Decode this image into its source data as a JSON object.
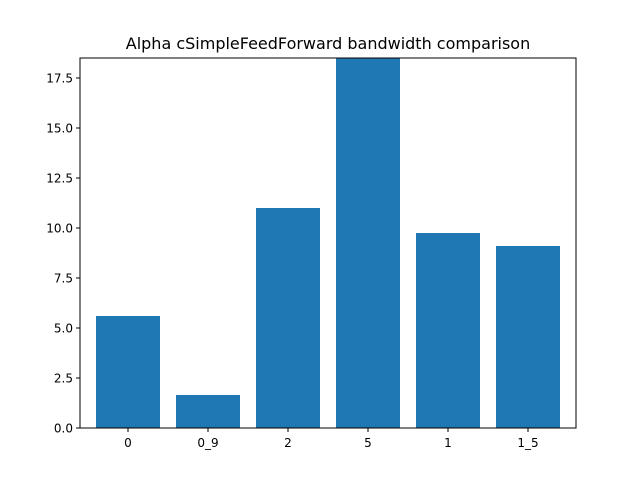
{
  "chart_data": {
    "type": "bar",
    "title": "Alpha cSimpleFeedForward bandwidth comparison",
    "xlabel": "",
    "ylabel": "",
    "categories": [
      "0",
      "0_9",
      "2",
      "5",
      "1",
      "1_5"
    ],
    "values": [
      5.6,
      1.65,
      11.0,
      18.5,
      9.75,
      9.1
    ],
    "ylim": [
      0,
      18.5
    ],
    "yticks": [
      0.0,
      2.5,
      5.0,
      7.5,
      10.0,
      12.5,
      15.0,
      17.5
    ],
    "ytick_labels": [
      "0.0",
      "2.5",
      "5.0",
      "7.5",
      "10.0",
      "12.5",
      "15.0",
      "17.5"
    ],
    "bar_color": "#1f77b4",
    "grid": false
  }
}
